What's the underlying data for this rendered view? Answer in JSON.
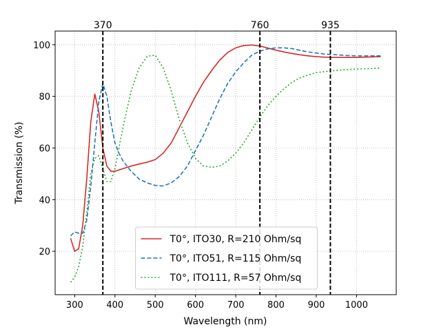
{
  "chart_data": {
    "type": "line",
    "x_label": "Wavelength (nm)",
    "y_label": "Transmission (%)",
    "xlim": [
      251.5,
      1098.5
    ],
    "ylim": [
      3.2,
      105.3
    ],
    "xticks": [
      300,
      400,
      500,
      600,
      700,
      800,
      900,
      1000
    ],
    "yticks": [
      20,
      40,
      60,
      80,
      100
    ],
    "grid": true,
    "legend": "lower center",
    "vlines": [
      370,
      760,
      935
    ],
    "vline_color": "#000000",
    "x": [
      290,
      300,
      310,
      320,
      330,
      340,
      350,
      360,
      370,
      380,
      390,
      400,
      410,
      420,
      440,
      460,
      480,
      500,
      520,
      540,
      560,
      580,
      600,
      620,
      640,
      660,
      680,
      700,
      720,
      740,
      760,
      780,
      800,
      820,
      840,
      860,
      880,
      900,
      920,
      940,
      960,
      980,
      1000,
      1020,
      1040,
      1060
    ],
    "series": [
      {
        "name": "T0°, ITO30, R=210 Ohm/sq",
        "color": "#d62728",
        "linestyle": "solid",
        "values": [
          25,
          20,
          21,
          30,
          48,
          70,
          81,
          74,
          60,
          53,
          51,
          51,
          51.5,
          52,
          53,
          53.8,
          54.5,
          55.5,
          58,
          62,
          68,
          74,
          80,
          85.5,
          90,
          94,
          97,
          98.8,
          99.7,
          99.9,
          99.5,
          98.7,
          97.9,
          97.2,
          96.6,
          96.1,
          95.7,
          95.4,
          95.2,
          95.1,
          95.1,
          95.1,
          95.1,
          95.2,
          95.3,
          95.4
        ]
      },
      {
        "name": "T0°, ITO51, R=115 Ohm/sq",
        "color": "#1f77b4",
        "linestyle": "dashed",
        "values": [
          26,
          27.5,
          27,
          27,
          32,
          45,
          62,
          78,
          85,
          80,
          70,
          62,
          58,
          55,
          51,
          48,
          46.5,
          45.5,
          45.3,
          46.5,
          49,
          53,
          59,
          65,
          72,
          79,
          85,
          89.5,
          93,
          96,
          97.5,
          98.4,
          98.8,
          98.8,
          98.5,
          97.8,
          97.2,
          96.8,
          96.4,
          96.2,
          96,
          95.8,
          95.7,
          95.7,
          95.7,
          95.7
        ]
      },
      {
        "name": "T0°, ITO111, R=57 Ohm/sq",
        "color": "#2ca02c",
        "linestyle": "dotted",
        "values": [
          8,
          10,
          14,
          22,
          35,
          50,
          56,
          57,
          52,
          47,
          47,
          52,
          60,
          68,
          82,
          91,
          95.5,
          96,
          91,
          82,
          71,
          62,
          56,
          53,
          52.5,
          53,
          55,
          58,
          62,
          67,
          72,
          76.5,
          80,
          83,
          85.5,
          87.2,
          88.3,
          89.2,
          89.6,
          89.9,
          90.2,
          90.4,
          90.6,
          90.7,
          90.8,
          91
        ]
      }
    ]
  }
}
